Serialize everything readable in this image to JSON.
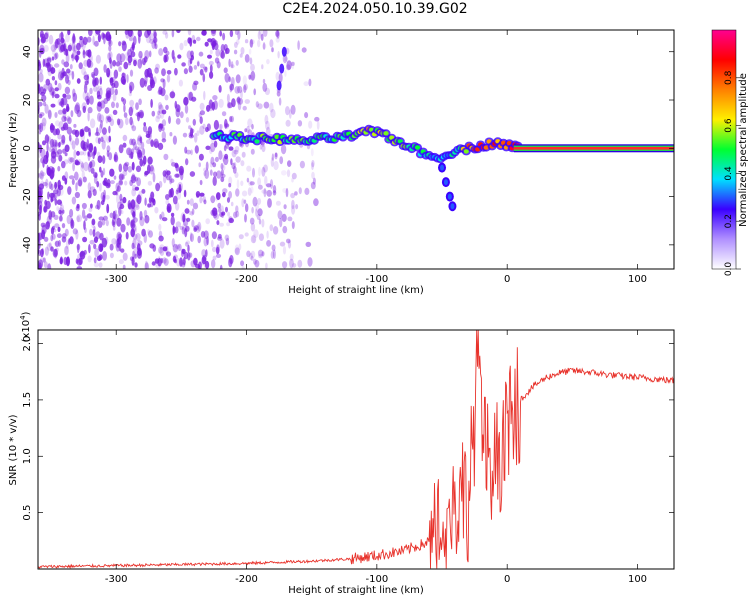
{
  "title": "C2E4.2024.050.10.39.G02",
  "colors": {
    "snr_line": "#e8332c",
    "scatter": "#7a1fe0",
    "track": "#2ad14a",
    "background": "#ffffff"
  },
  "chart_data": [
    {
      "type": "heatmap",
      "xlabel": "Height of straight line (km)",
      "ylabel": "Frequency (Hz)",
      "xlim": [
        -360,
        128
      ],
      "ylim": [
        -50,
        49
      ],
      "xticks": [
        -300,
        -200,
        -100,
        0,
        100
      ],
      "yticks": [
        -40,
        -20,
        0,
        20,
        40
      ],
      "colorbar": {
        "label": "Normalized spectral amplitude",
        "range": [
          0,
          1
        ],
        "ticks": [
          "0.0",
          "0.2",
          "0.4",
          "0.6",
          "0.8"
        ],
        "tick_values": [
          0,
          0.2,
          0.4,
          0.6,
          0.8
        ],
        "colormap": [
          "#ffffff",
          "#b090ff",
          "#3a00ff",
          "#00e0ff",
          "#00ff30",
          "#fff000",
          "#ff8000",
          "#ff0000",
          "#ff0090"
        ]
      },
      "track": {
        "x": [
          -215,
          -200,
          -180,
          -160,
          -140,
          -120,
          -105,
          -95,
          -85,
          -75,
          -65,
          -55,
          -48,
          -40,
          -30,
          -20,
          -12,
          -5,
          5,
          128
        ],
        "y": [
          5,
          4,
          4,
          3,
          4,
          5,
          7,
          6,
          3,
          1,
          -2,
          -4,
          -3,
          -1,
          0,
          1,
          2,
          2,
          0.5,
          0
        ],
        "amplitude": [
          0.5,
          0.55,
          0.6,
          0.55,
          0.5,
          0.6,
          0.75,
          0.7,
          0.6,
          0.55,
          0.55,
          0.45,
          0.35,
          0.5,
          0.8,
          0.9,
          0.95,
          0.9,
          1.0,
          1.0
        ]
      },
      "branch": {
        "x": [
          -50,
          -47,
          -44,
          -42
        ],
        "y": [
          -8,
          -14,
          -20,
          -24
        ]
      },
      "upper_feature": {
        "x": [
          -175,
          -173,
          -171
        ],
        "y": [
          26,
          33,
          40
        ]
      }
    },
    {
      "type": "line",
      "xlabel": "Height of straight line (km)",
      "ylabel": "SNR (10 * v/v)",
      "y_multiplier": "(x10",
      "y_multiplier_exp": "4",
      "y_multiplier_close": ")",
      "xlim": [
        -360,
        128
      ],
      "ylim": [
        0,
        2.12
      ],
      "xticks": [
        -300,
        -200,
        -100,
        0,
        100
      ],
      "yticks": [
        0.5,
        1.0,
        1.5,
        2.0
      ],
      "ytick_labels": [
        "0.5",
        "1.0",
        "1.5",
        "2.0"
      ],
      "series": [
        {
          "x": [
            -360,
            -300,
            -250,
            -200,
            -150,
            -120,
            -100,
            -90,
            -80,
            -70,
            -60,
            -50,
            -45,
            -40,
            -35,
            -30,
            -25,
            -22,
            -20,
            -15,
            -10,
            -5,
            0,
            5,
            10,
            20,
            30,
            40,
            50,
            60,
            80,
            100,
            128
          ],
          "y": [
            0.02,
            0.03,
            0.04,
            0.05,
            0.07,
            0.09,
            0.12,
            0.14,
            0.16,
            0.2,
            0.24,
            0.32,
            0.45,
            0.55,
            0.75,
            0.6,
            1.3,
            2.12,
            1.2,
            1.0,
            0.95,
            1.05,
            1.2,
            1.35,
            1.5,
            1.62,
            1.7,
            1.74,
            1.76,
            1.75,
            1.72,
            1.7,
            1.67
          ]
        }
      ]
    }
  ]
}
